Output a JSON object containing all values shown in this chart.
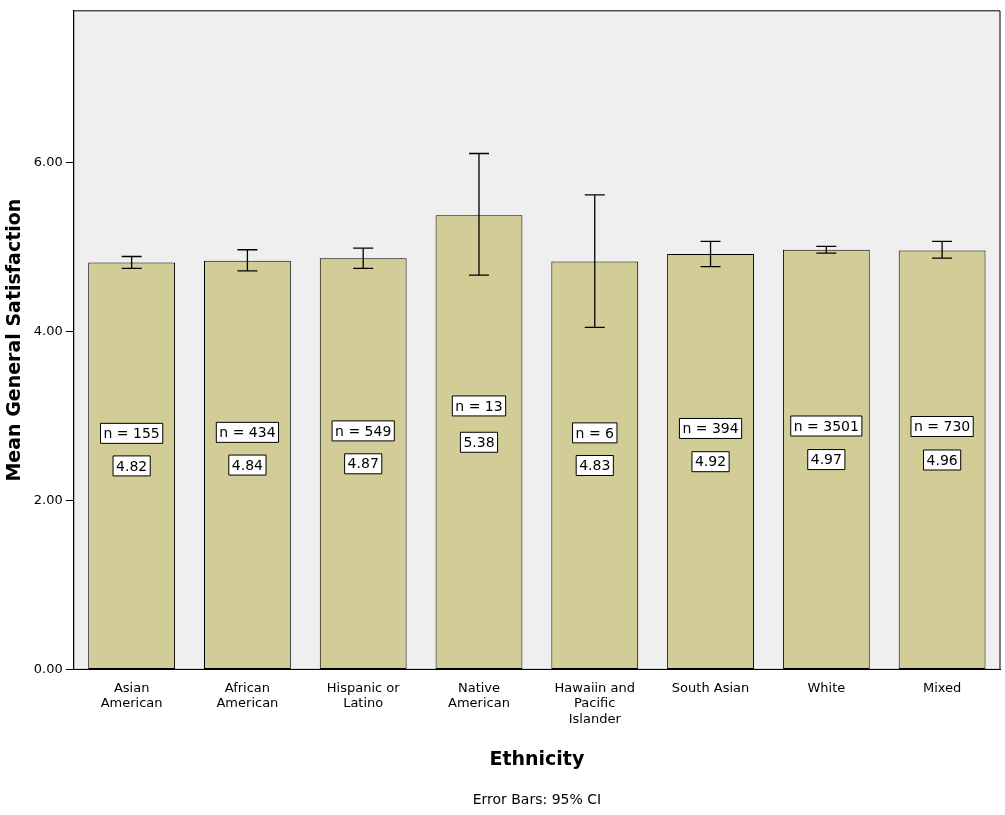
{
  "chart_data": {
    "type": "bar",
    "xlabel": "Ethnicity",
    "ylabel": "Mean General Satisfaction",
    "categories": [
      "Asian American",
      "African American",
      "Hispanic or Latino",
      "Native American",
      "Hawaiin and Pacific Islander",
      "South Asian",
      "White",
      "Mixed"
    ],
    "values": [
      4.82,
      4.84,
      4.87,
      5.38,
      4.83,
      4.92,
      4.97,
      4.96
    ],
    "errors": [
      [
        4.75,
        4.89
      ],
      [
        4.72,
        4.97
      ],
      [
        4.75,
        4.99
      ],
      [
        4.67,
        6.11
      ],
      [
        4.05,
        5.62
      ],
      [
        4.77,
        5.07
      ],
      [
        4.93,
        5.01
      ],
      [
        4.87,
        5.07
      ]
    ],
    "color": "#d2cd96",
    "data_labels": true,
    "ylim": [
      0,
      7.8
    ],
    "yticks": [
      {
        "value": 0,
        "label": "0.00"
      },
      {
        "value": 2,
        "label": "2.00"
      },
      {
        "value": 4,
        "label": "4.00"
      },
      {
        "value": 6,
        "label": "6.00"
      }
    ],
    "grid": false,
    "legend": false,
    "annotations": [
      "n = 155",
      "n = 434",
      "n = 549",
      "n = 13",
      "n = 6",
      "n = 394",
      "n = 3501",
      "n = 730",
      "Error Bars: 95% CI"
    ]
  }
}
